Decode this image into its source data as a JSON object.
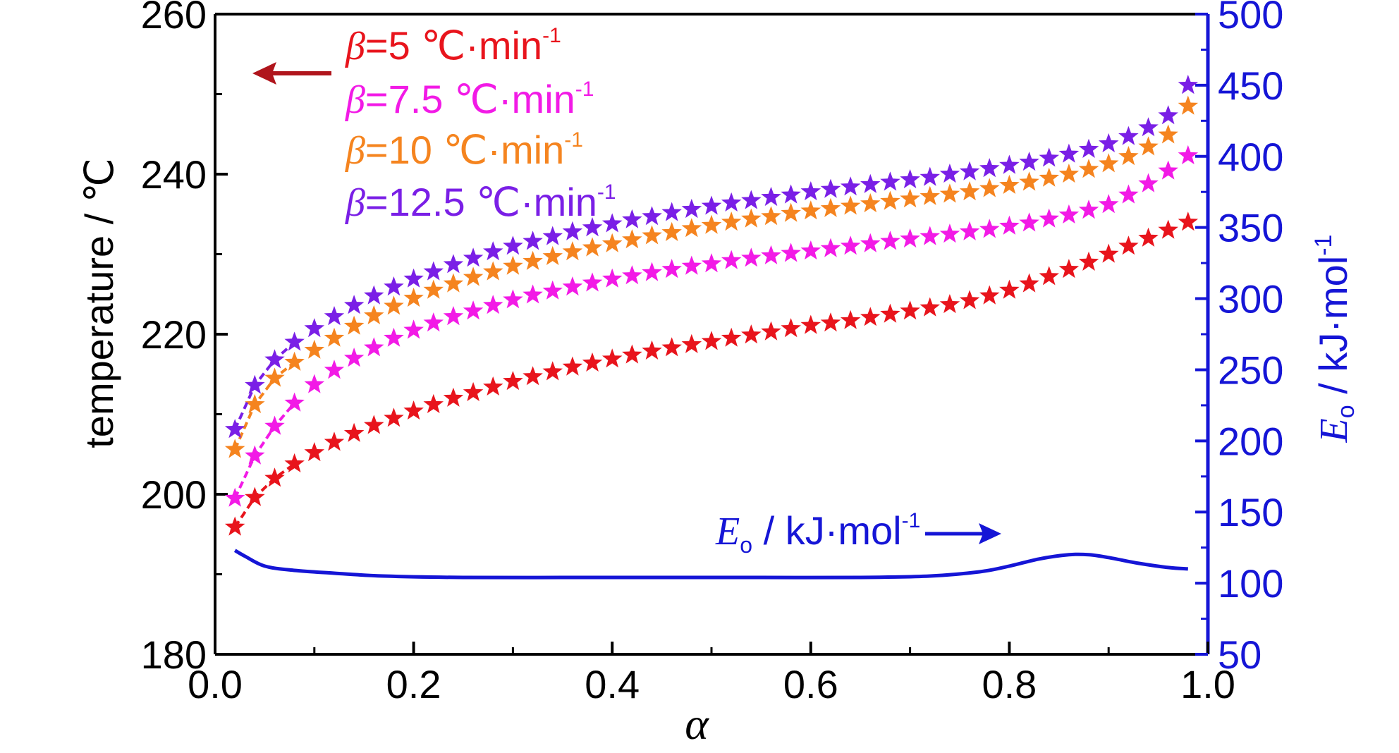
{
  "colors": {
    "series_5": "#e8141c",
    "series_7_5": "#f21ae6",
    "series_10": "#f5841f",
    "series_12_5": "#7a1fe6",
    "eo": "#1515d6",
    "left_arrow": "#b0151c",
    "axis": "#000000"
  },
  "chart_data": {
    "type": "scatter",
    "x_label": "α",
    "y_left_label": "temperature / ℃",
    "y_right_label": "E",
    "y_right_label_subscript": "o",
    "y_right_label_unit": " / kJ·mol",
    "y_right_label_sup": "-1",
    "xlim": [
      0.0,
      1.0
    ],
    "ylim_left": [
      180,
      260
    ],
    "ylim_right": [
      50,
      500
    ],
    "x_ticks": [
      "0.0",
      "0.2",
      "0.4",
      "0.6",
      "0.8",
      "1.0"
    ],
    "y_left_ticks": [
      "180",
      "200",
      "220",
      "240",
      "260"
    ],
    "y_right_ticks": [
      "50",
      "100",
      "150",
      "200",
      "250",
      "300",
      "350",
      "400",
      "450",
      "500"
    ],
    "grid": false,
    "legend_position": "top-left",
    "marker": "star",
    "series": [
      {
        "name_prefix": "β",
        "name_rest": "=5  ℃·min",
        "name_sup": "-1",
        "color_key": "series_5",
        "axis": "left",
        "x": [
          0.02,
          0.04,
          0.06,
          0.08,
          0.1,
          0.12,
          0.14,
          0.16,
          0.18,
          0.2,
          0.22,
          0.24,
          0.26,
          0.28,
          0.3,
          0.32,
          0.34,
          0.36,
          0.38,
          0.4,
          0.42,
          0.44,
          0.46,
          0.48,
          0.5,
          0.52,
          0.54,
          0.56,
          0.58,
          0.6,
          0.62,
          0.64,
          0.66,
          0.68,
          0.7,
          0.72,
          0.74,
          0.76,
          0.78,
          0.8,
          0.82,
          0.84,
          0.86,
          0.88,
          0.9,
          0.92,
          0.94,
          0.96,
          0.98
        ],
        "y": [
          195.9,
          199.6,
          202.0,
          203.8,
          205.2,
          206.5,
          207.6,
          208.6,
          209.5,
          210.4,
          211.2,
          212.0,
          212.7,
          213.4,
          214.1,
          214.7,
          215.3,
          215.9,
          216.4,
          216.9,
          217.4,
          217.9,
          218.3,
          218.7,
          219.1,
          219.5,
          219.9,
          220.3,
          220.7,
          221.1,
          221.4,
          221.7,
          222.1,
          222.5,
          222.9,
          223.3,
          223.7,
          224.2,
          224.8,
          225.5,
          226.3,
          227.2,
          228.1,
          229.0,
          230.0,
          231.0,
          232.0,
          233.0,
          234.0
        ]
      },
      {
        "name_prefix": "β",
        "name_rest": "=7.5  ℃·min",
        "name_sup": "-1",
        "color_key": "series_7_5",
        "axis": "left",
        "x": [
          0.02,
          0.04,
          0.06,
          0.08,
          0.1,
          0.12,
          0.14,
          0.16,
          0.18,
          0.2,
          0.22,
          0.24,
          0.26,
          0.28,
          0.3,
          0.32,
          0.34,
          0.36,
          0.38,
          0.4,
          0.42,
          0.44,
          0.46,
          0.48,
          0.5,
          0.52,
          0.54,
          0.56,
          0.58,
          0.6,
          0.62,
          0.64,
          0.66,
          0.68,
          0.7,
          0.72,
          0.74,
          0.76,
          0.78,
          0.8,
          0.82,
          0.84,
          0.86,
          0.88,
          0.9,
          0.92,
          0.94,
          0.96,
          0.98
        ],
        "y": [
          199.5,
          204.8,
          208.5,
          211.4,
          213.7,
          215.5,
          217.0,
          218.3,
          219.5,
          220.5,
          221.4,
          222.2,
          222.9,
          223.6,
          224.3,
          224.9,
          225.4,
          225.9,
          226.4,
          226.9,
          227.3,
          227.7,
          228.1,
          228.5,
          228.8,
          229.2,
          229.5,
          229.8,
          230.1,
          230.4,
          230.7,
          231.0,
          231.3,
          231.6,
          231.9,
          232.2,
          232.5,
          232.8,
          233.1,
          233.5,
          233.9,
          234.4,
          234.9,
          235.5,
          236.2,
          237.4,
          238.8,
          240.4,
          242.3
        ]
      },
      {
        "name_prefix": "β",
        "name_rest": "=10  ℃·min",
        "name_sup": "-1",
        "color_key": "series_10",
        "axis": "left",
        "x": [
          0.02,
          0.04,
          0.06,
          0.08,
          0.1,
          0.12,
          0.14,
          0.16,
          0.18,
          0.2,
          0.22,
          0.24,
          0.26,
          0.28,
          0.3,
          0.32,
          0.34,
          0.36,
          0.38,
          0.4,
          0.42,
          0.44,
          0.46,
          0.48,
          0.5,
          0.52,
          0.54,
          0.56,
          0.58,
          0.6,
          0.62,
          0.64,
          0.66,
          0.68,
          0.7,
          0.72,
          0.74,
          0.76,
          0.78,
          0.8,
          0.82,
          0.84,
          0.86,
          0.88,
          0.9,
          0.92,
          0.94,
          0.96,
          0.98
        ],
        "y": [
          205.6,
          211.2,
          214.5,
          216.5,
          218.0,
          219.5,
          221.0,
          222.3,
          223.5,
          224.5,
          225.5,
          226.3,
          227.1,
          227.8,
          228.5,
          229.1,
          229.7,
          230.3,
          230.8,
          231.3,
          231.8,
          232.3,
          232.7,
          233.2,
          233.6,
          234.0,
          234.4,
          234.7,
          235.1,
          235.4,
          235.7,
          236.0,
          236.3,
          236.6,
          236.9,
          237.2,
          237.5,
          237.8,
          238.2,
          238.6,
          239.0,
          239.5,
          240.0,
          240.6,
          241.3,
          242.2,
          243.4,
          244.9,
          248.5
        ]
      },
      {
        "name_prefix": "β",
        "name_rest": "=12.5  ℃·min",
        "name_sup": "-1",
        "color_key": "series_12_5",
        "axis": "left",
        "x": [
          0.02,
          0.04,
          0.06,
          0.08,
          0.1,
          0.12,
          0.14,
          0.16,
          0.18,
          0.2,
          0.22,
          0.24,
          0.26,
          0.28,
          0.3,
          0.32,
          0.34,
          0.36,
          0.38,
          0.4,
          0.42,
          0.44,
          0.46,
          0.48,
          0.5,
          0.52,
          0.54,
          0.56,
          0.58,
          0.6,
          0.62,
          0.64,
          0.66,
          0.68,
          0.7,
          0.72,
          0.74,
          0.76,
          0.78,
          0.8,
          0.82,
          0.84,
          0.86,
          0.88,
          0.9,
          0.92,
          0.94,
          0.96,
          0.98
        ],
        "y": [
          208.1,
          213.6,
          216.8,
          219.0,
          220.7,
          222.2,
          223.6,
          224.8,
          225.9,
          226.9,
          227.8,
          228.7,
          229.5,
          230.3,
          231.0,
          231.6,
          232.2,
          232.8,
          233.3,
          233.8,
          234.3,
          234.7,
          235.2,
          235.6,
          236.0,
          236.4,
          236.7,
          237.1,
          237.4,
          237.8,
          238.1,
          238.4,
          238.7,
          239.0,
          239.3,
          239.6,
          240.0,
          240.3,
          240.7,
          241.1,
          241.5,
          242.0,
          242.5,
          243.1,
          243.8,
          244.7,
          245.8,
          247.3,
          251.1
        ]
      },
      {
        "name_prefix": "E",
        "name_sub": "o",
        "name_rest": " / kJ·mol",
        "name_sup": "-1",
        "color_key": "eo",
        "axis": "right",
        "line_only": true,
        "x": [
          0.02,
          0.03,
          0.05,
          0.08,
          0.12,
          0.17,
          0.25,
          0.35,
          0.45,
          0.55,
          0.65,
          0.72,
          0.77,
          0.8,
          0.83,
          0.86,
          0.88,
          0.9,
          0.93,
          0.96,
          0.98
        ],
        "y": [
          123,
          119,
          112,
          109,
          107,
          105,
          104,
          104,
          104,
          104,
          104,
          105,
          108,
          112,
          117,
          120,
          120,
          118,
          114,
          111,
          110
        ]
      }
    ]
  }
}
